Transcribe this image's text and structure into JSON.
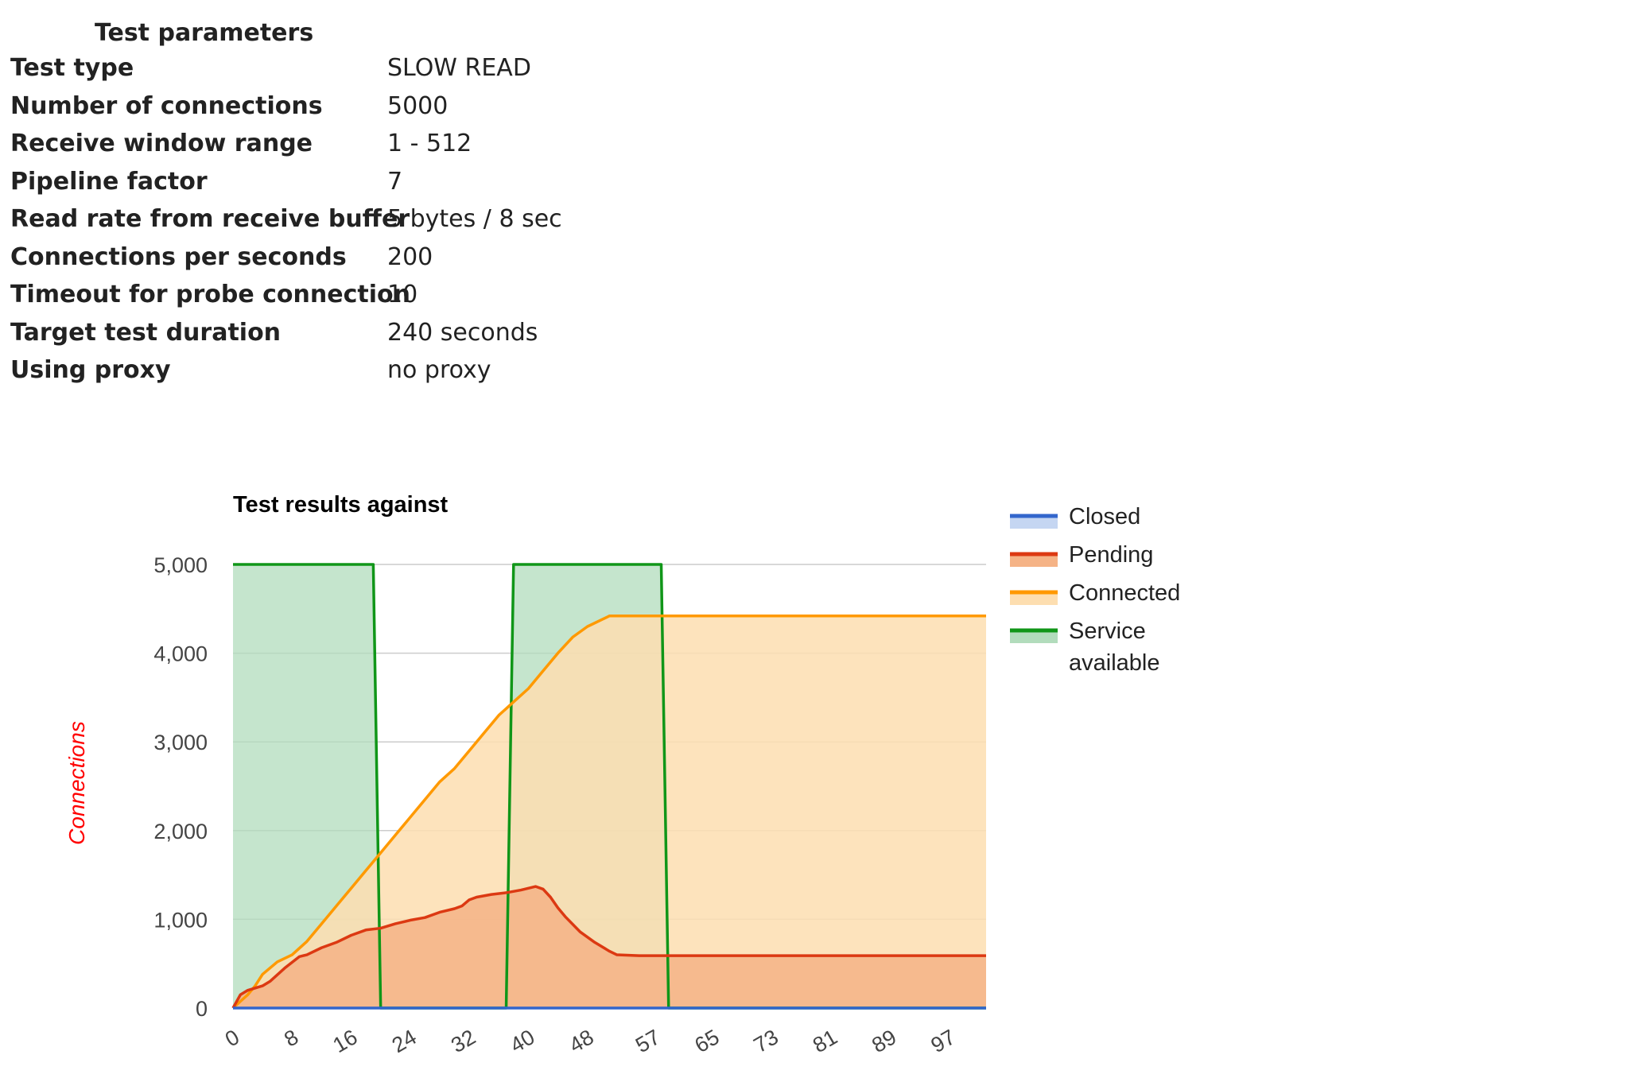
{
  "params": {
    "title": "Test parameters",
    "rows": [
      {
        "key": "Test type",
        "value": "SLOW READ"
      },
      {
        "key": "Number of connections",
        "value": "5000"
      },
      {
        "key": "Receive window range",
        "value": "1 - 512"
      },
      {
        "key": "Pipeline factor",
        "value": "7"
      },
      {
        "key": "Read rate from receive buffer",
        "value": "5 bytes / 8 sec"
      },
      {
        "key": "Connections per seconds",
        "value": "200"
      },
      {
        "key": "Timeout for probe connection",
        "value": "10"
      },
      {
        "key": "Target test duration",
        "value": "240 seconds"
      },
      {
        "key": "Using proxy",
        "value": "no proxy"
      }
    ]
  },
  "chart_data": {
    "type": "area",
    "title": "Test results against",
    "ylabel": "Connections",
    "xlabel": "",
    "ylim": [
      0,
      5000
    ],
    "xlim": [
      0,
      102
    ],
    "yticks": [
      0,
      1000,
      2000,
      3000,
      4000,
      5000
    ],
    "ytick_labels": [
      "0",
      "1,000",
      "2,000",
      "3,000",
      "4,000",
      "5,000"
    ],
    "xticks": [
      0,
      8,
      16,
      24,
      32,
      40,
      48,
      57,
      65,
      73,
      81,
      89,
      97
    ],
    "grid": true,
    "legend_position": "right",
    "series": [
      {
        "name": "Closed",
        "color": "#3366cc",
        "fill": "#c5d6f2",
        "points": [
          [
            0,
            0
          ],
          [
            102,
            0
          ]
        ]
      },
      {
        "name": "Pending",
        "color": "#dc3912",
        "fill": "#f5b386",
        "points": [
          [
            0,
            0
          ],
          [
            1,
            150
          ],
          [
            2,
            200
          ],
          [
            4,
            250
          ],
          [
            5,
            300
          ],
          [
            7,
            450
          ],
          [
            9,
            580
          ],
          [
            10,
            600
          ],
          [
            12,
            680
          ],
          [
            14,
            740
          ],
          [
            16,
            820
          ],
          [
            18,
            880
          ],
          [
            20,
            900
          ],
          [
            22,
            950
          ],
          [
            24,
            990
          ],
          [
            26,
            1020
          ],
          [
            28,
            1080
          ],
          [
            30,
            1120
          ],
          [
            31,
            1150
          ],
          [
            32,
            1220
          ],
          [
            33,
            1250
          ],
          [
            35,
            1280
          ],
          [
            37,
            1300
          ],
          [
            39,
            1330
          ],
          [
            40,
            1350
          ],
          [
            41,
            1370
          ],
          [
            42,
            1340
          ],
          [
            43,
            1250
          ],
          [
            44,
            1130
          ],
          [
            45,
            1030
          ],
          [
            47,
            860
          ],
          [
            49,
            740
          ],
          [
            51,
            640
          ],
          [
            52,
            600
          ],
          [
            55,
            590
          ],
          [
            102,
            590
          ]
        ]
      },
      {
        "name": "Connected",
        "color": "#ff9900",
        "fill": "#fddeb0",
        "points": [
          [
            0,
            0
          ],
          [
            2,
            150
          ],
          [
            3,
            250
          ],
          [
            4,
            380
          ],
          [
            6,
            520
          ],
          [
            8,
            600
          ],
          [
            10,
            750
          ],
          [
            12,
            950
          ],
          [
            14,
            1150
          ],
          [
            16,
            1350
          ],
          [
            18,
            1550
          ],
          [
            20,
            1750
          ],
          [
            22,
            1950
          ],
          [
            24,
            2150
          ],
          [
            26,
            2350
          ],
          [
            28,
            2550
          ],
          [
            30,
            2700
          ],
          [
            32,
            2900
          ],
          [
            34,
            3100
          ],
          [
            36,
            3300
          ],
          [
            38,
            3450
          ],
          [
            40,
            3600
          ],
          [
            42,
            3800
          ],
          [
            44,
            4000
          ],
          [
            46,
            4180
          ],
          [
            48,
            4300
          ],
          [
            50,
            4380
          ],
          [
            51,
            4420
          ],
          [
            60,
            4420
          ],
          [
            102,
            4420
          ]
        ]
      },
      {
        "name": "Service available",
        "color": "#109618",
        "fill": "#b2dcbc",
        "points": [
          [
            0,
            5000
          ],
          [
            19,
            5000
          ],
          [
            20,
            0
          ],
          [
            37,
            0
          ],
          [
            38,
            5000
          ],
          [
            58,
            5000
          ],
          [
            59,
            0
          ],
          [
            102,
            0
          ]
        ]
      }
    ]
  }
}
